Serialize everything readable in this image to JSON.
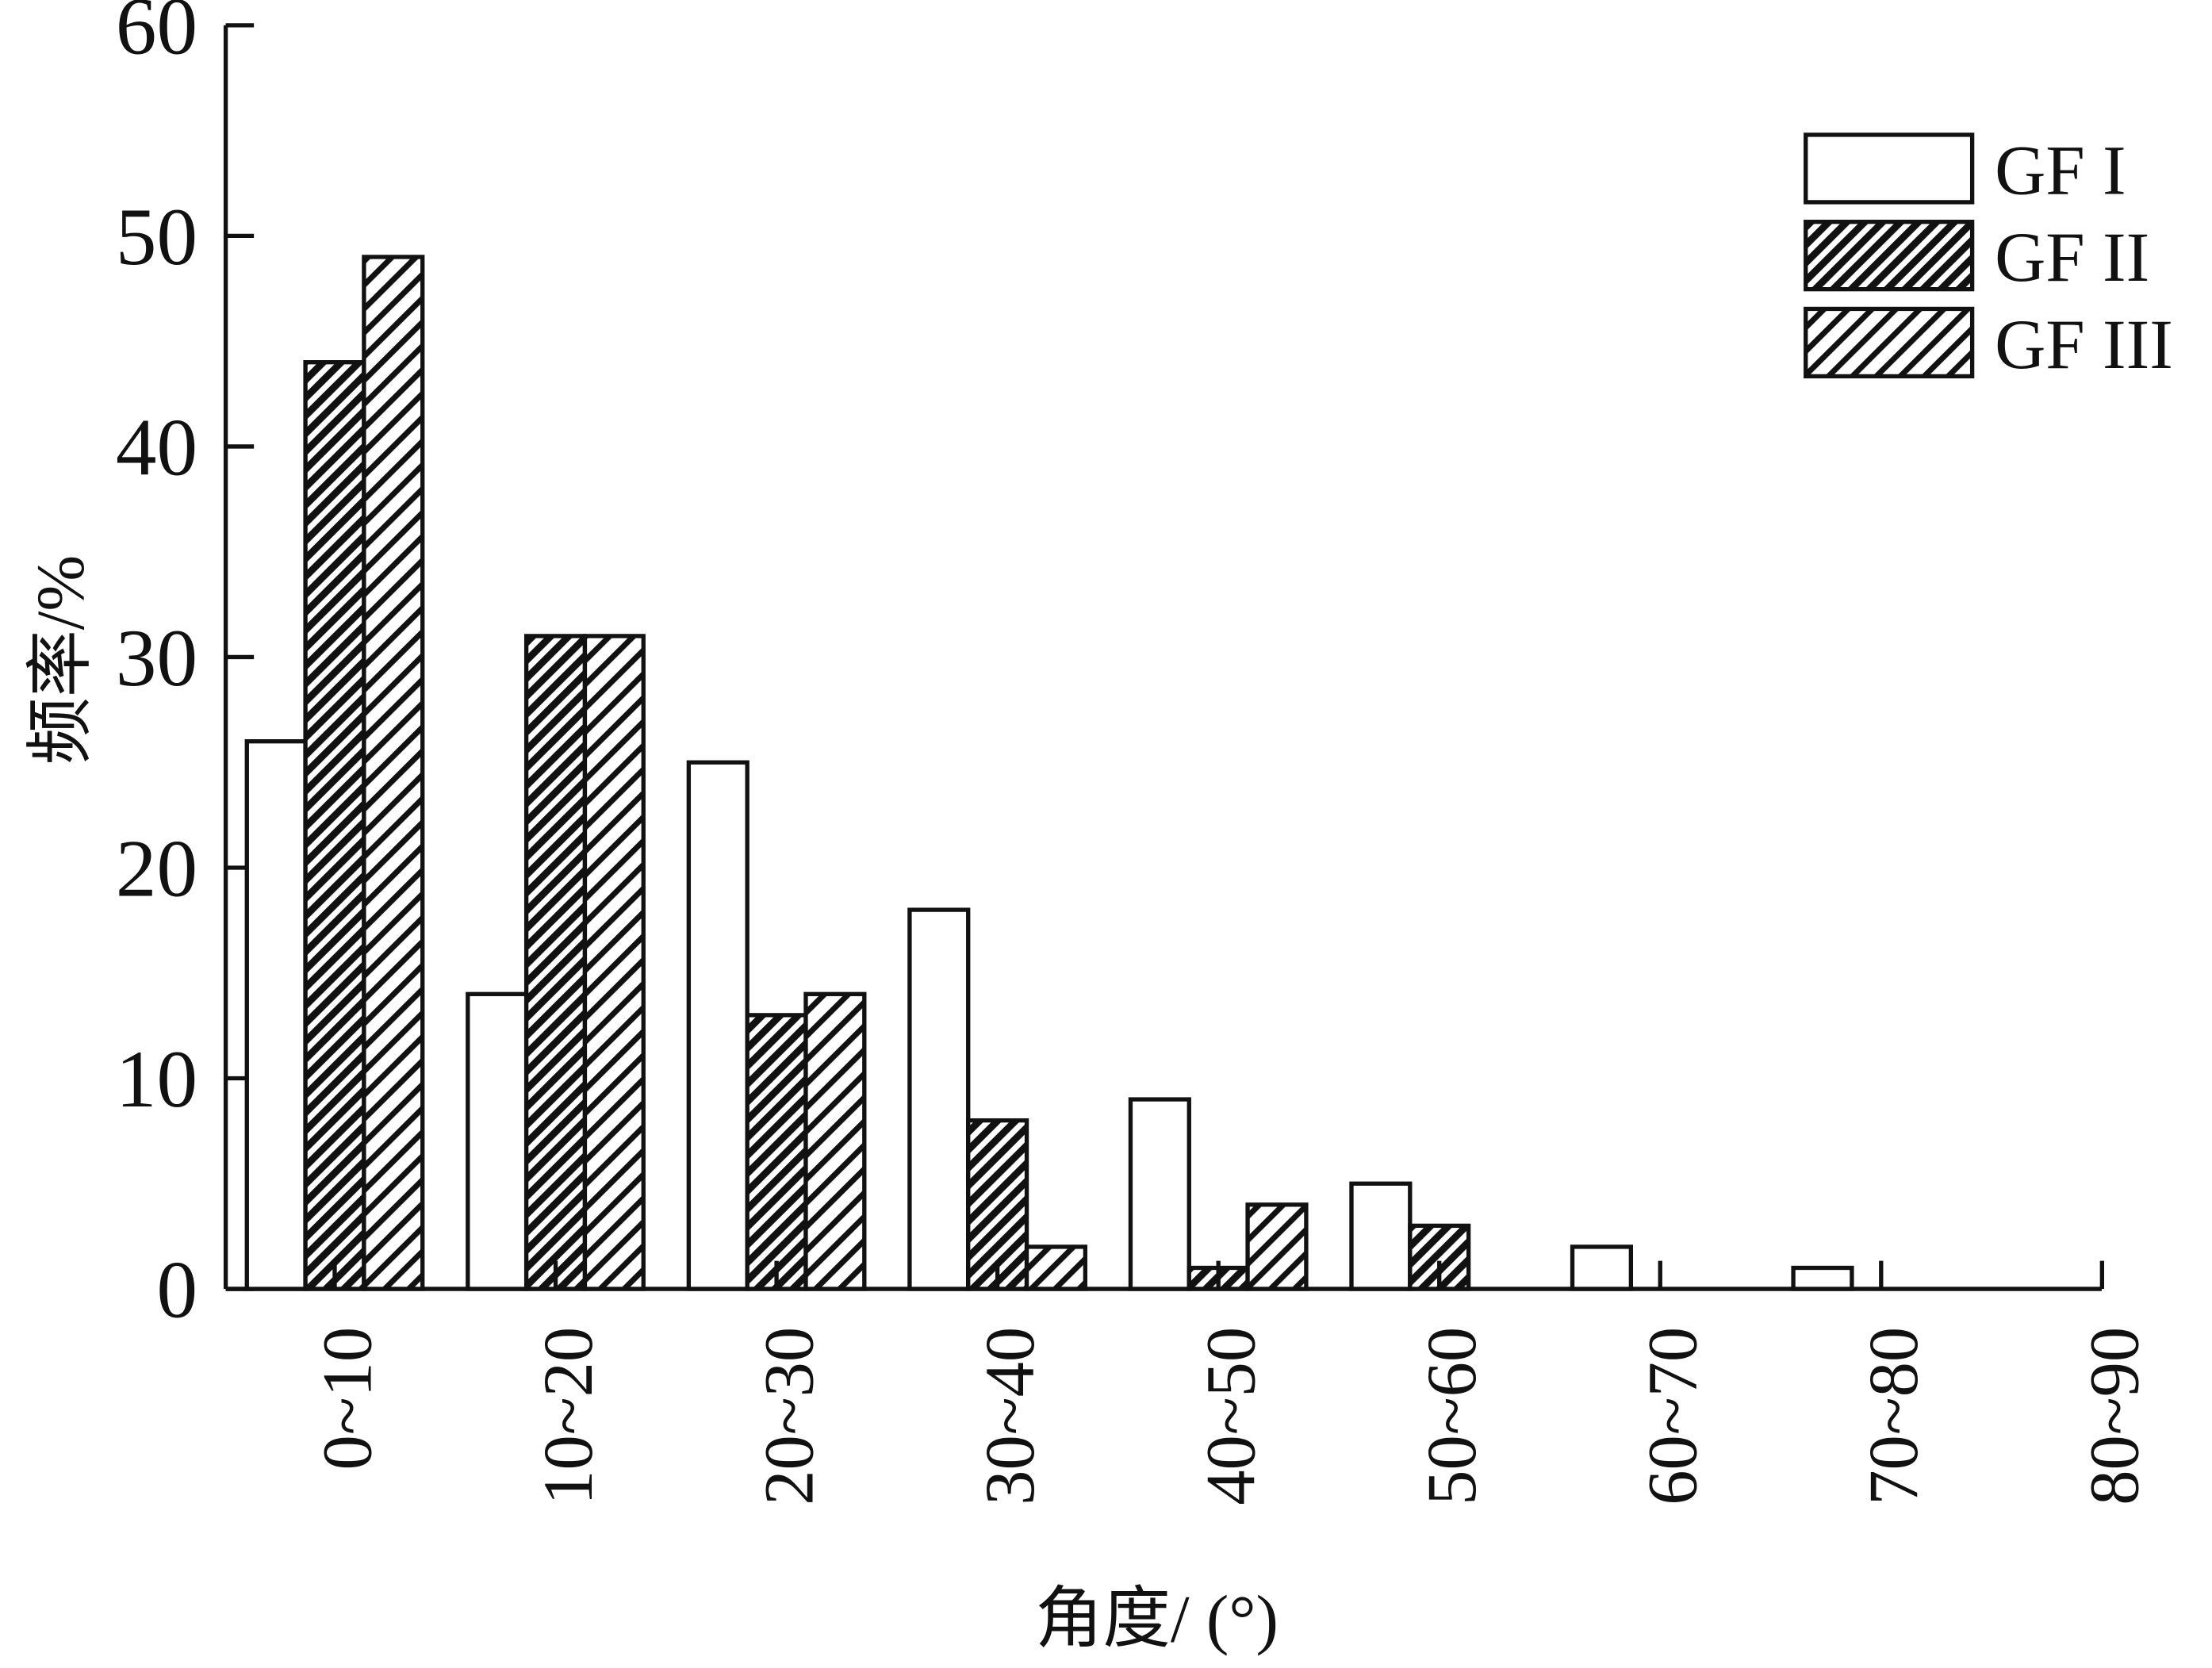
{
  "chart_data": {
    "type": "bar",
    "x_label": "角度/ (°)",
    "y_label": "频率/%",
    "categories": [
      "0~10",
      "10~20",
      "20~30",
      "30~40",
      "40~50",
      "50~60",
      "60~70",
      "70~80",
      "80~90"
    ],
    "series": [
      {
        "name": "GF I",
        "color": "#ffffff",
        "pattern": "none",
        "values": [
          26,
          14,
          25,
          18,
          9,
          5,
          2,
          1,
          0
        ]
      },
      {
        "name": "GF II",
        "color": "#ffffff",
        "pattern": "dense-hatch",
        "values": [
          44,
          31,
          13,
          8,
          1,
          3,
          0,
          0,
          0
        ]
      },
      {
        "name": "GF III",
        "color": "#ffffff",
        "pattern": "hatch",
        "values": [
          49,
          31,
          14,
          2,
          4,
          0,
          0,
          0,
          0
        ]
      }
    ],
    "ylim": [
      0,
      60
    ],
    "yticks": [
      0,
      10,
      20,
      30,
      40,
      50,
      60
    ],
    "legend": "upper-right"
  }
}
